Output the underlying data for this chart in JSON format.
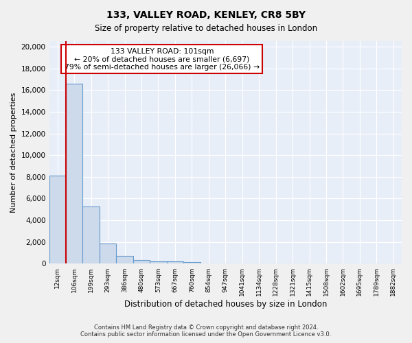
{
  "title1": "133, VALLEY ROAD, KENLEY, CR8 5BY",
  "title2": "Size of property relative to detached houses in London",
  "xlabel": "Distribution of detached houses by size in London",
  "ylabel": "Number of detached properties",
  "categories": [
    "12sqm",
    "106sqm",
    "199sqm",
    "293sqm",
    "386sqm",
    "480sqm",
    "573sqm",
    "667sqm",
    "760sqm",
    "854sqm",
    "947sqm",
    "1041sqm",
    "1134sqm",
    "1228sqm",
    "1321sqm",
    "1415sqm",
    "1508sqm",
    "1602sqm",
    "1695sqm",
    "1789sqm",
    "1882sqm"
  ],
  "values": [
    8100,
    16600,
    5300,
    1850,
    720,
    320,
    250,
    200,
    160,
    0,
    0,
    0,
    0,
    0,
    0,
    0,
    0,
    0,
    0,
    0,
    0
  ],
  "bar_color": "#ccdaeb",
  "bar_edge_color": "#6699cc",
  "background_color": "#e8eef8",
  "grid_color": "#ffffff",
  "vline_color": "#cc0000",
  "annotation_line1": "133 VALLEY ROAD: 101sqm",
  "annotation_line2": "← 20% of detached houses are smaller (6,697)",
  "annotation_line3": "79% of semi-detached houses are larger (26,066) →",
  "annotation_box_color": "#ffffff",
  "annotation_box_edge_color": "#cc0000",
  "ylim": [
    0,
    20500
  ],
  "yticks": [
    0,
    2000,
    4000,
    6000,
    8000,
    10000,
    12000,
    14000,
    16000,
    18000,
    20000
  ],
  "fig_facecolor": "#f0f0f0",
  "footer1": "Contains HM Land Registry data © Crown copyright and database right 2024.",
  "footer2": "Contains public sector information licensed under the Open Government Licence v3.0."
}
